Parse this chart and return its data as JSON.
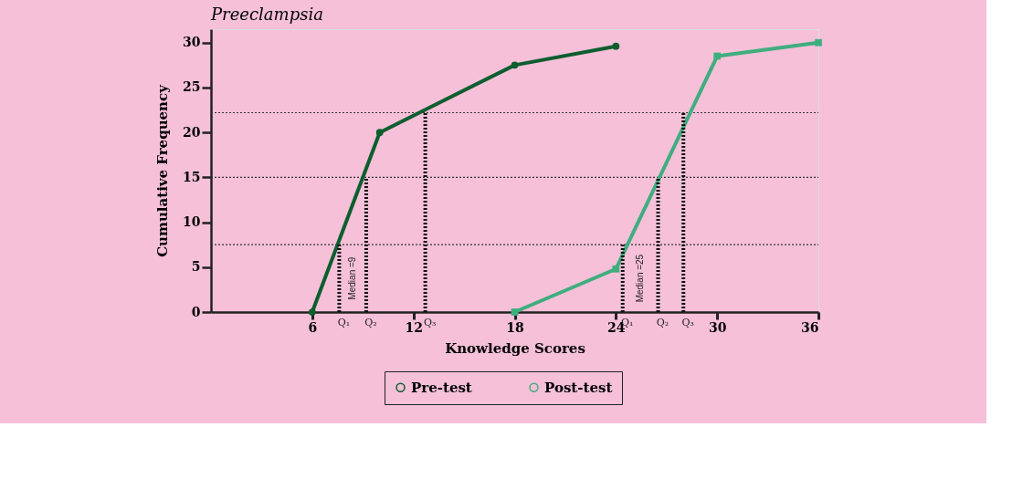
{
  "chart_data": {
    "type": "line",
    "title": "Preeclampsia",
    "xlabel": "Knowledge Scores",
    "ylabel": "Cumulative Frequency",
    "xlim": [
      0,
      36
    ],
    "xticks": [
      6,
      12,
      18,
      24,
      30,
      36
    ],
    "ylim": [
      0,
      31.5
    ],
    "yticks": [
      0,
      5,
      10,
      15,
      20,
      25,
      30
    ],
    "grid": false,
    "legend": "bottom",
    "series": [
      {
        "name": "Pre-test",
        "color": "#0d5e2e",
        "marker": "circle",
        "x": [
          6,
          10,
          18,
          24
        ],
        "values": [
          0,
          20,
          27.5,
          29.6
        ]
      },
      {
        "name": "Post-test",
        "color": "#3fae7f",
        "marker": "square",
        "x": [
          18,
          24,
          30,
          36
        ],
        "values": [
          0,
          4.8,
          28.5,
          30
        ]
      },
      {
        "color": "#111111",
        "line_style": "dotted",
        "marker": "none",
        "x": [
          7.6,
          7.6
        ],
        "values": [
          0,
          7.5
        ]
      },
      {
        "color": "#111111",
        "line_style": "dotted",
        "marker": "none",
        "x": [
          9.2,
          9.2
        ],
        "values": [
          0,
          15
        ]
      },
      {
        "color": "#111111",
        "line_style": "dotted",
        "marker": "none",
        "x": [
          12.7,
          12.7
        ],
        "values": [
          0,
          22.2
        ]
      },
      {
        "color": "#111111",
        "line_style": "dotted",
        "marker": "none",
        "x": [
          24.4,
          24.4
        ],
        "values": [
          0,
          7.5
        ]
      },
      {
        "color": "#111111",
        "line_style": "dotted",
        "marker": "none",
        "x": [
          26.5,
          26.5
        ],
        "values": [
          0,
          15
        ]
      },
      {
        "color": "#111111",
        "line_style": "dotted",
        "marker": "none",
        "x": [
          28,
          28
        ],
        "values": [
          0,
          22.2
        ]
      }
    ],
    "ref_lines": [
      {
        "axis": "y",
        "value": 22.2,
        "color": "#333333",
        "line_style": "dotted"
      },
      {
        "axis": "y",
        "value": 15,
        "color": "#333333",
        "line_style": "dotted"
      },
      {
        "axis": "y",
        "value": 7.5,
        "color": "#333333",
        "line_style": "dotted"
      }
    ],
    "annotations": [
      {
        "text": "Q₁",
        "x": 7.6,
        "y": 0
      },
      {
        "text": "Q₂",
        "x": 9.2,
        "y": 0
      },
      {
        "text": "Q₃",
        "x": 12.7,
        "y": 0
      },
      {
        "text": "Q₁",
        "x": 24.4,
        "y": 0
      },
      {
        "text": "Q₂",
        "x": 26.5,
        "y": 0
      },
      {
        "text": "Q₃",
        "x": 28,
        "y": 0
      },
      "Median =9",
      "Median =25"
    ]
  }
}
